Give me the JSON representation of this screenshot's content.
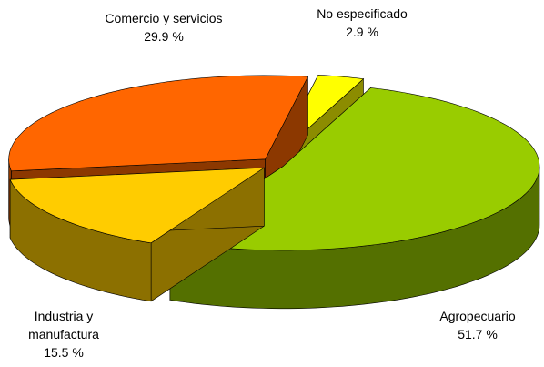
{
  "chart_data": {
    "type": "pie",
    "categories": [
      "Agropecuario",
      "Industria y manufactura",
      "Comercio y servicios",
      "No especificado"
    ],
    "values": [
      51.7,
      15.5,
      29.9,
      2.9
    ],
    "value_labels": [
      "51.7 %",
      "15.5 %",
      "29.9 %",
      "2.9 %"
    ],
    "colors": [
      "#99cc00",
      "#ffcc00",
      "#ff6600",
      "#ffff00"
    ]
  }
}
